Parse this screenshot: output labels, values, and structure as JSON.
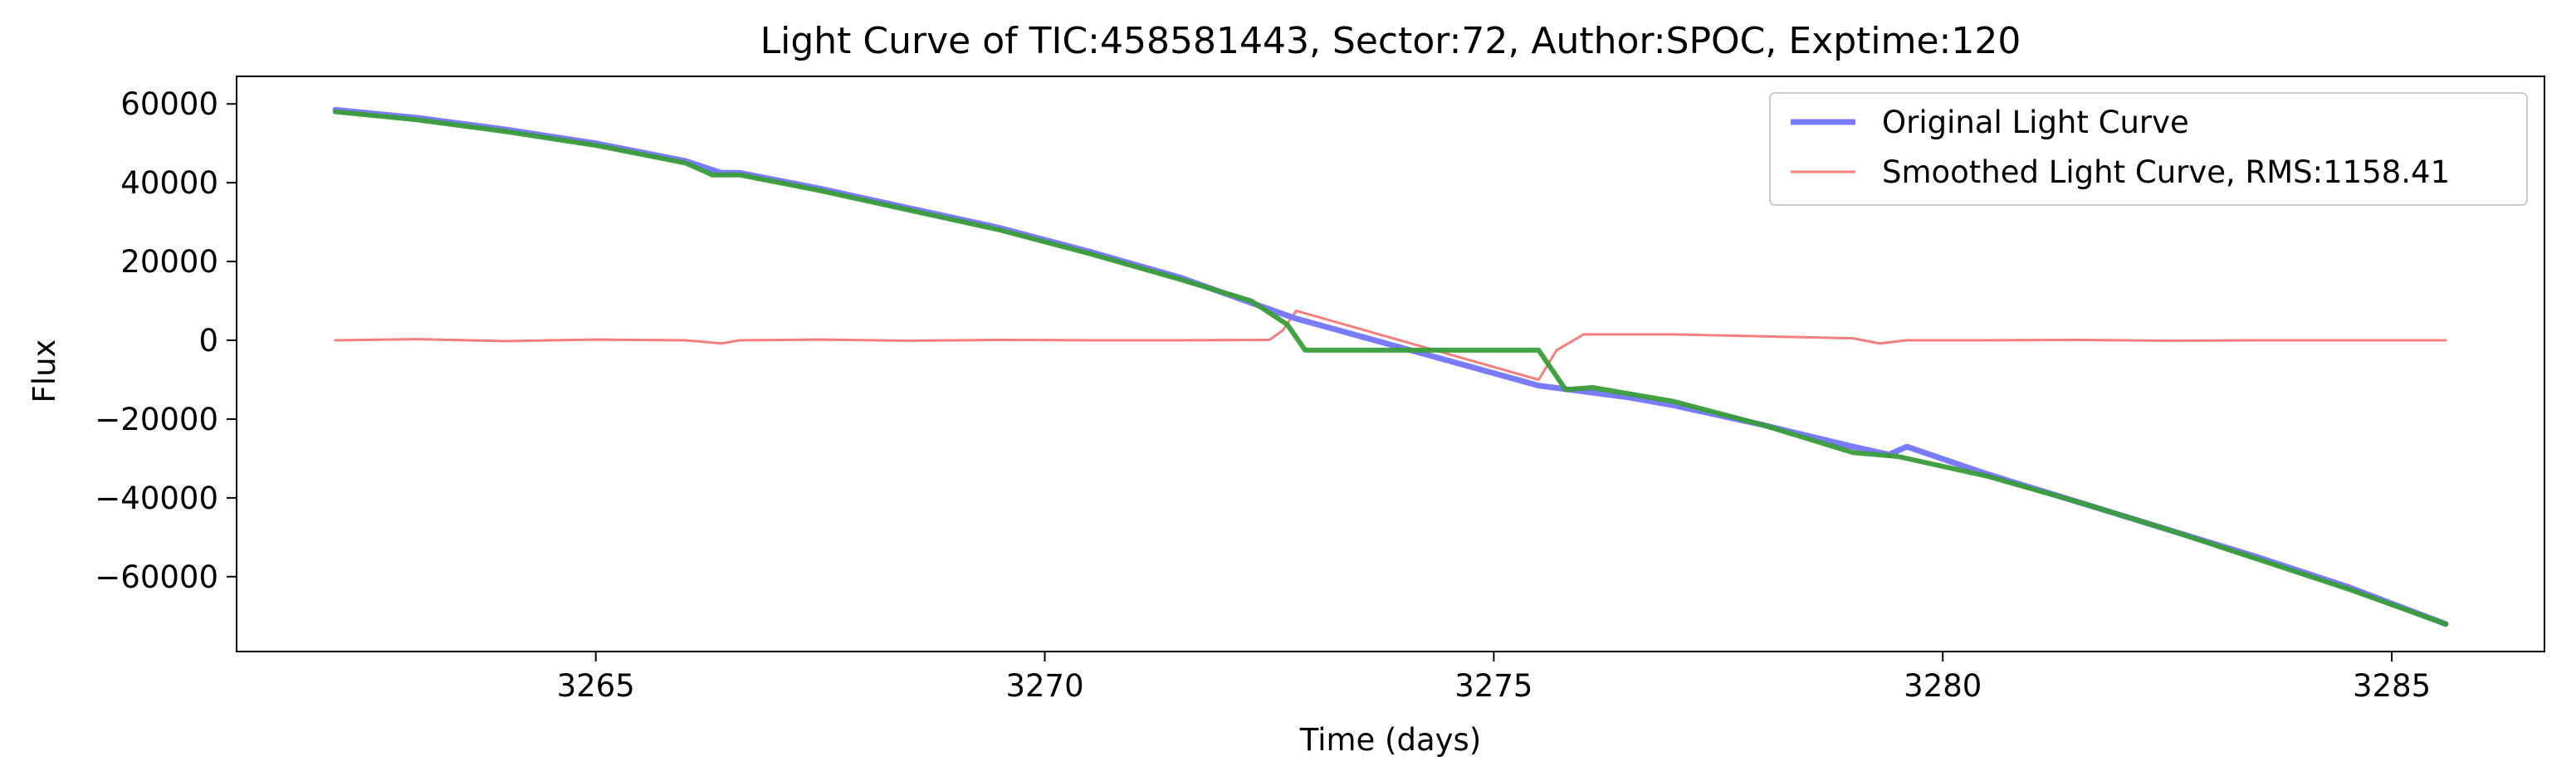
{
  "chart_data": {
    "type": "line",
    "title": "Light Curve of TIC:458581443, Sector:72, Author:SPOC, Exptime:120",
    "xlabel": "Time (days)",
    "ylabel": "Flux",
    "xlim": [
      3261,
      3286.7
    ],
    "ylim": [
      -79000,
      67000
    ],
    "x_ticks": [
      3265,
      3270,
      3275,
      3280,
      3285
    ],
    "y_ticks": [
      60000,
      40000,
      20000,
      0,
      -20000,
      -40000,
      -60000
    ],
    "x_tick_labels": [
      "3265",
      "3270",
      "3275",
      "3280",
      "3285"
    ],
    "y_tick_labels": [
      "60000",
      "40000",
      "20000",
      "0",
      "−20000",
      "−40000",
      "−60000"
    ],
    "grid": false,
    "legend_position": "top-right",
    "colors": {
      "original": "#7b7bff",
      "smoothed": "#f47f7f",
      "trend": "#3a9d3a"
    },
    "series": [
      {
        "name": "Original Light Curve",
        "x": [
          3262.1,
          3263.0,
          3264.0,
          3265.0,
          3266.0,
          3266.4,
          3266.6,
          3267.5,
          3268.5,
          3269.5,
          3270.5,
          3271.5,
          3272.3,
          3272.8,
          3275.5,
          3276.0,
          3276.5,
          3277.0,
          3278.0,
          3279.0,
          3279.4,
          3279.6,
          3280.5,
          3281.5,
          3282.5,
          3283.5,
          3284.5,
          3285.6
        ],
        "y": [
          58500,
          56500,
          53500,
          50000,
          45500,
          42500,
          42500,
          38500,
          33500,
          28500,
          22500,
          16000,
          9500,
          5500,
          -11500,
          -13000,
          -14500,
          -16500,
          -21500,
          -27000,
          -29000,
          -27000,
          -34000,
          -41000,
          -48000,
          -55000,
          -62500,
          -72000
        ]
      },
      {
        "name": "Smoothed Light Curve, RMS:1158.41",
        "x": [
          3262.1,
          3263.0,
          3264.0,
          3265.0,
          3266.0,
          3266.4,
          3266.6,
          3267.5,
          3268.5,
          3269.5,
          3270.5,
          3271.5,
          3272.5,
          3272.65,
          3272.8,
          3275.5,
          3275.7,
          3276.0,
          3277.0,
          3278.0,
          3279.0,
          3279.3,
          3279.6,
          3280.5,
          3281.5,
          3282.5,
          3283.5,
          3284.5,
          3285.6
        ],
        "y": [
          0,
          300,
          -200,
          200,
          0,
          -800,
          0,
          200,
          -100,
          100,
          0,
          0,
          100,
          2500,
          7500,
          -10000,
          -2500,
          1500,
          1500,
          1000,
          500,
          -800,
          0,
          0,
          100,
          -100,
          0,
          0,
          0
        ]
      },
      {
        "name": "",
        "x": [
          3262.1,
          3263.0,
          3264.0,
          3265.0,
          3266.0,
          3266.3,
          3266.6,
          3267.5,
          3268.5,
          3269.5,
          3270.5,
          3271.5,
          3272.3,
          3272.7,
          3272.9,
          3275.5,
          3275.8,
          3276.1,
          3277.0,
          3278.0,
          3279.0,
          3279.5,
          3280.5,
          3281.5,
          3282.5,
          3283.5,
          3284.5,
          3285.6
        ],
        "y": [
          58000,
          56000,
          53000,
          49500,
          45000,
          42000,
          42000,
          38000,
          33000,
          28000,
          22000,
          15500,
          10000,
          4000,
          -2500,
          -2500,
          -12500,
          -12000,
          -15500,
          -21500,
          -28500,
          -29500,
          -34500,
          -41000,
          -48000,
          -55500,
          -63000,
          -72000
        ]
      }
    ]
  }
}
